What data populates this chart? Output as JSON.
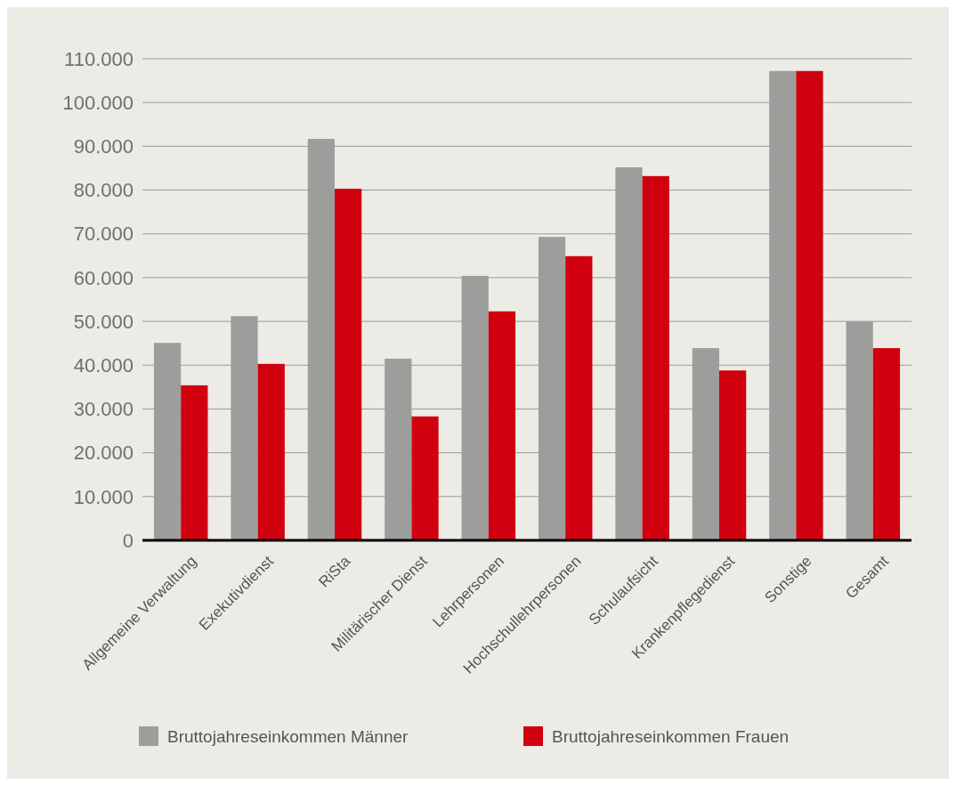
{
  "chart_data": {
    "type": "bar",
    "categories": [
      "Allgemeine Verwaltung",
      "Exekutivdienst",
      "RiSta",
      "Militärischer Dienst",
      "Lehrpersonen",
      "Hochschullehrpersonen",
      "Schulaufsicht",
      "Krankenpflegedienst",
      "Sonstige",
      "Gesamt"
    ],
    "series": [
      {
        "name": "Bruttojahreseinkommen Männer",
        "color": "#9d9d9c",
        "values": [
          45100,
          51200,
          91700,
          41500,
          60400,
          69300,
          85200,
          43900,
          107200,
          50000
        ]
      },
      {
        "name": "Bruttojahreseinkommen Frauen",
        "color": "#d0000f",
        "values": [
          35400,
          40300,
          80300,
          28300,
          52300,
          64900,
          83200,
          38800,
          107200,
          43900
        ]
      }
    ],
    "ylim": [
      0,
      110000
    ],
    "yticks": [
      {
        "value": 0,
        "label": "0"
      },
      {
        "value": 10000,
        "label": "10.000"
      },
      {
        "value": 20000,
        "label": "20.000"
      },
      {
        "value": 30000,
        "label": "30.000"
      },
      {
        "value": 40000,
        "label": "40.000"
      },
      {
        "value": 50000,
        "label": "50.000"
      },
      {
        "value": 60000,
        "label": "60.000"
      },
      {
        "value": 70000,
        "label": "70.000"
      },
      {
        "value": 80000,
        "label": "80.000"
      },
      {
        "value": 90000,
        "label": "90.000"
      },
      {
        "value": 100000,
        "label": "100.000"
      },
      {
        "value": 110000,
        "label": "110.000"
      }
    ],
    "grid": "y",
    "legend": "bottom"
  }
}
